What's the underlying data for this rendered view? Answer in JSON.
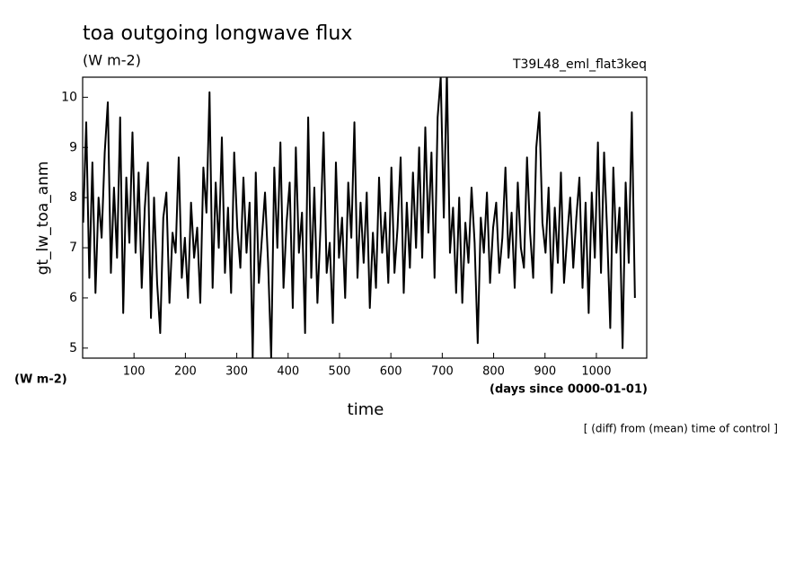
{
  "chart_data": {
    "type": "line",
    "title": "toa outgoing longwave flux",
    "subtitle": "(W m-2)",
    "experiment": "T39L48_eml_flat3keq",
    "ylabel": "gt_lw_toa_anm",
    "yunits": "(W m-2)",
    "xlabel": "time",
    "xunits": "(days since 0000-01-01)",
    "note": "[ (diff) from (mean) time of control ]",
    "xlim": [
      0,
      1098
    ],
    "ylim": [
      4.8,
      10.4
    ],
    "xticks": [
      100,
      200,
      300,
      400,
      500,
      600,
      700,
      800,
      900,
      1000
    ],
    "yticks": [
      5,
      6,
      7,
      8,
      9,
      10
    ],
    "x": [
      1,
      7,
      13,
      19,
      25,
      31,
      37,
      43,
      49,
      55,
      61,
      67,
      73,
      79,
      85,
      91,
      97,
      103,
      109,
      115,
      121,
      127,
      133,
      139,
      145,
      151,
      157,
      163,
      169,
      175,
      181,
      187,
      193,
      199,
      205,
      211,
      217,
      223,
      229,
      235,
      241,
      247,
      253,
      259,
      265,
      271,
      277,
      283,
      289,
      295,
      301,
      307,
      313,
      319,
      325,
      331,
      337,
      343,
      349,
      355,
      361,
      367,
      373,
      379,
      385,
      391,
      397,
      403,
      409,
      415,
      421,
      427,
      433,
      439,
      445,
      451,
      457,
      463,
      469,
      475,
      481,
      487,
      493,
      499,
      505,
      511,
      517,
      523,
      529,
      535,
      541,
      547,
      553,
      559,
      565,
      571,
      577,
      583,
      589,
      595,
      601,
      607,
      613,
      619,
      625,
      631,
      637,
      643,
      649,
      655,
      661,
      667,
      673,
      679,
      685,
      691,
      697,
      703,
      709,
      715,
      721,
      727,
      733,
      739,
      745,
      751,
      757,
      763,
      769,
      775,
      781,
      787,
      793,
      799,
      805,
      811,
      817,
      823,
      829,
      835,
      841,
      847,
      853,
      859,
      865,
      871,
      877,
      883,
      889,
      895,
      901,
      907,
      913,
      919,
      925,
      931,
      937,
      943,
      949,
      955,
      961,
      967,
      973,
      979,
      985,
      991,
      997,
      1003,
      1009,
      1015,
      1021,
      1027,
      1033,
      1039,
      1045,
      1051,
      1057,
      1063,
      1069,
      1075
    ],
    "series": [
      {
        "color": "#000000",
        "values": [
          7.5,
          9.5,
          6.4,
          8.7,
          6.1,
          8.0,
          7.2,
          8.9,
          9.9,
          6.5,
          8.2,
          6.8,
          9.6,
          5.7,
          8.4,
          7.1,
          9.3,
          6.9,
          8.5,
          6.2,
          7.8,
          8.7,
          5.6,
          8.0,
          6.3,
          5.3,
          7.6,
          8.1,
          5.9,
          7.3,
          6.9,
          8.8,
          6.4,
          7.2,
          6.0,
          7.9,
          6.8,
          7.4,
          5.9,
          8.6,
          7.7,
          10.1,
          6.2,
          8.3,
          7.0,
          9.2,
          6.5,
          7.8,
          6.1,
          8.9,
          7.4,
          6.6,
          8.4,
          6.9,
          7.9,
          4.8,
          8.5,
          6.3,
          7.2,
          8.1,
          6.7,
          4.8,
          8.6,
          7.0,
          9.1,
          6.2,
          7.5,
          8.3,
          5.8,
          9.0,
          6.9,
          7.7,
          5.3,
          9.6,
          6.4,
          8.2,
          5.9,
          7.4,
          9.3,
          6.5,
          7.1,
          5.5,
          8.7,
          6.8,
          7.6,
          6.0,
          8.3,
          7.2,
          9.5,
          6.4,
          7.9,
          6.7,
          8.1,
          5.8,
          7.3,
          6.2,
          8.4,
          6.9,
          7.7,
          6.3,
          8.6,
          6.5,
          7.4,
          8.8,
          6.1,
          7.9,
          6.6,
          8.5,
          7.0,
          9.0,
          6.8,
          9.4,
          7.3,
          8.9,
          6.4,
          9.6,
          10.4,
          7.6,
          10.5,
          6.9,
          7.8,
          6.1,
          8.0,
          5.9,
          7.5,
          6.7,
          8.2,
          7.1,
          5.1,
          7.6,
          6.9,
          8.1,
          6.3,
          7.4,
          7.9,
          6.5,
          7.2,
          8.6,
          6.8,
          7.7,
          6.2,
          8.3,
          7.0,
          6.6,
          8.8,
          7.3,
          6.4,
          9.0,
          9.7,
          7.5,
          6.9,
          8.2,
          6.1,
          7.8,
          6.7,
          8.5,
          6.3,
          7.2,
          8.0,
          6.6,
          7.6,
          8.4,
          6.2,
          7.9,
          5.7,
          8.1,
          6.8,
          9.1,
          6.5,
          8.9,
          7.3,
          5.4,
          8.6,
          6.9,
          7.8,
          5.0,
          8.3,
          6.7,
          9.7,
          6.0
        ]
      }
    ]
  }
}
